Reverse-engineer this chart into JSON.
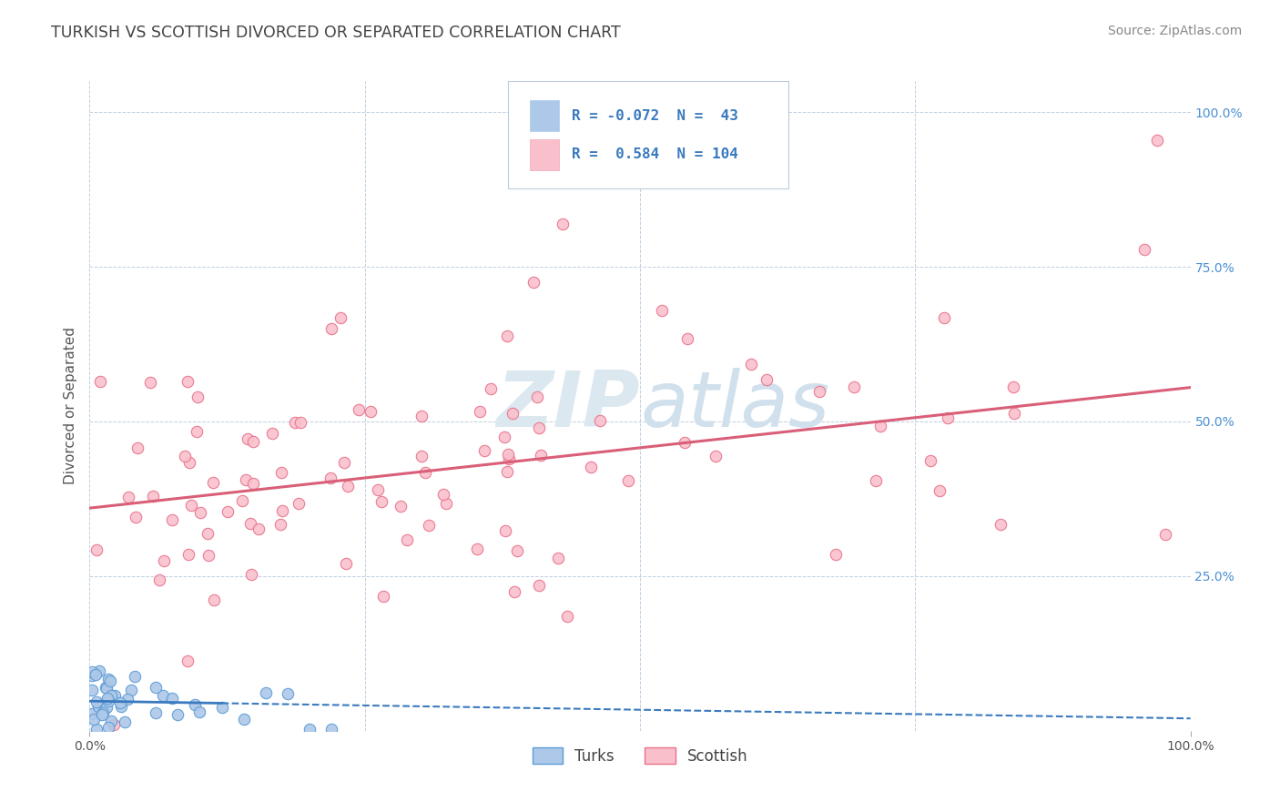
{
  "title": "TURKISH VS SCOTTISH DIVORCED OR SEPARATED CORRELATION CHART",
  "source_text": "Source: ZipAtlas.com",
  "ylabel": "Divorced or Separated",
  "turks_color": "#adc8e8",
  "turks_edge_color": "#5b9bd5",
  "scottish_color": "#f9c0cc",
  "scottish_edge_color": "#e8728a",
  "turks_line_color": "#3a7abf",
  "scottish_line_color": "#d95f78",
  "background_color": "#ffffff",
  "grid_color": "#c0cfe0",
  "watermark_color": "#dce8f0",
  "title_color": "#444444",
  "axis_label_color": "#555555",
  "right_tick_color": "#4a8fd4",
  "legend_text_color": "#3a7abf",
  "legend_box_color": "#e8f0f8",
  "source_color": "#888888"
}
